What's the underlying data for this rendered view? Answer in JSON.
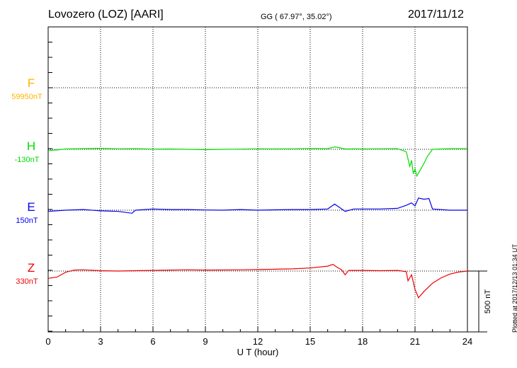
{
  "header": {
    "station": "Lovozero (LOZ)  [AARI]",
    "coords": "GG ( 67.97°,  35.02°)",
    "date": "2017/11/12"
  },
  "plotted_note": "Plotted at 2017/12/13 01:34 UT",
  "scale_bar_label": "500 nT",
  "chart_data": {
    "type": "line",
    "title": "",
    "xlabel": "U T (hour)",
    "ylabel": "",
    "xlim": [
      0,
      24
    ],
    "xticks": [
      0,
      3,
      6,
      9,
      12,
      15,
      18,
      21,
      24
    ],
    "grid": true,
    "scale_bar_nT": 500,
    "series": [
      {
        "name": "F",
        "baseline_label": "59950nT",
        "color": "#ffb400",
        "points": []
      },
      {
        "name": "H",
        "baseline_label": "-130nT",
        "color": "#00dd00",
        "points": [
          [
            0,
            -10
          ],
          [
            0.5,
            -5
          ],
          [
            1,
            3
          ],
          [
            2,
            5
          ],
          [
            3,
            8
          ],
          [
            4,
            4
          ],
          [
            5,
            5
          ],
          [
            6,
            2
          ],
          [
            7,
            3
          ],
          [
            8,
            0
          ],
          [
            9,
            -3
          ],
          [
            10,
            0
          ],
          [
            11,
            2
          ],
          [
            12,
            4
          ],
          [
            13,
            3
          ],
          [
            14,
            4
          ],
          [
            15,
            6
          ],
          [
            16,
            5
          ],
          [
            16.4,
            20
          ],
          [
            16.6,
            15
          ],
          [
            17,
            3
          ],
          [
            17.5,
            4
          ],
          [
            18,
            3
          ],
          [
            19,
            4
          ],
          [
            20,
            5
          ],
          [
            20.5,
            -20
          ],
          [
            20.7,
            -140
          ],
          [
            20.8,
            -90
          ],
          [
            20.9,
            -200
          ],
          [
            21,
            -160
          ],
          [
            21.1,
            -220
          ],
          [
            21.3,
            -170
          ],
          [
            21.5,
            -120
          ],
          [
            21.7,
            -60
          ],
          [
            22,
            0
          ],
          [
            23,
            5
          ],
          [
            24,
            5
          ]
        ]
      },
      {
        "name": "E",
        "baseline_label": "150nT",
        "color": "#0000ee",
        "points": [
          [
            0,
            -10
          ],
          [
            1,
            0
          ],
          [
            2,
            5
          ],
          [
            3,
            -5
          ],
          [
            4,
            -10
          ],
          [
            4.8,
            -25
          ],
          [
            5,
            0
          ],
          [
            6,
            10
          ],
          [
            7,
            5
          ],
          [
            8,
            5
          ],
          [
            9,
            2
          ],
          [
            10,
            0
          ],
          [
            11,
            5
          ],
          [
            12,
            0
          ],
          [
            13,
            3
          ],
          [
            14,
            5
          ],
          [
            15,
            5
          ],
          [
            16,
            10
          ],
          [
            16.4,
            50
          ],
          [
            16.6,
            30
          ],
          [
            17,
            -10
          ],
          [
            17.5,
            10
          ],
          [
            18,
            10
          ],
          [
            19,
            10
          ],
          [
            20,
            15
          ],
          [
            20.5,
            40
          ],
          [
            20.8,
            60
          ],
          [
            21,
            35
          ],
          [
            21.2,
            100
          ],
          [
            21.5,
            90
          ],
          [
            21.8,
            95
          ],
          [
            22,
            10
          ],
          [
            23,
            0
          ],
          [
            24,
            0
          ]
        ]
      },
      {
        "name": "Z",
        "baseline_label": "330nT",
        "color": "#ee0000",
        "points": [
          [
            0,
            -60
          ],
          [
            0.5,
            -50
          ],
          [
            1,
            -10
          ],
          [
            1.5,
            8
          ],
          [
            2,
            10
          ],
          [
            3,
            3
          ],
          [
            4,
            0
          ],
          [
            5,
            3
          ],
          [
            6,
            5
          ],
          [
            7,
            8
          ],
          [
            8,
            10
          ],
          [
            9,
            8
          ],
          [
            10,
            9
          ],
          [
            11,
            10
          ],
          [
            12,
            12
          ],
          [
            13,
            15
          ],
          [
            14,
            18
          ],
          [
            15,
            25
          ],
          [
            16,
            40
          ],
          [
            16.3,
            55
          ],
          [
            16.5,
            35
          ],
          [
            16.8,
            10
          ],
          [
            17,
            -30
          ],
          [
            17.2,
            5
          ],
          [
            18,
            5
          ],
          [
            19,
            3
          ],
          [
            20,
            5
          ],
          [
            20.5,
            -5
          ],
          [
            20.6,
            -80
          ],
          [
            20.8,
            -30
          ],
          [
            21,
            -150
          ],
          [
            21.2,
            -220
          ],
          [
            21.5,
            -170
          ],
          [
            22,
            -100
          ],
          [
            22.5,
            -55
          ],
          [
            23,
            -25
          ],
          [
            23.5,
            -8
          ],
          [
            24,
            0
          ]
        ]
      }
    ]
  }
}
